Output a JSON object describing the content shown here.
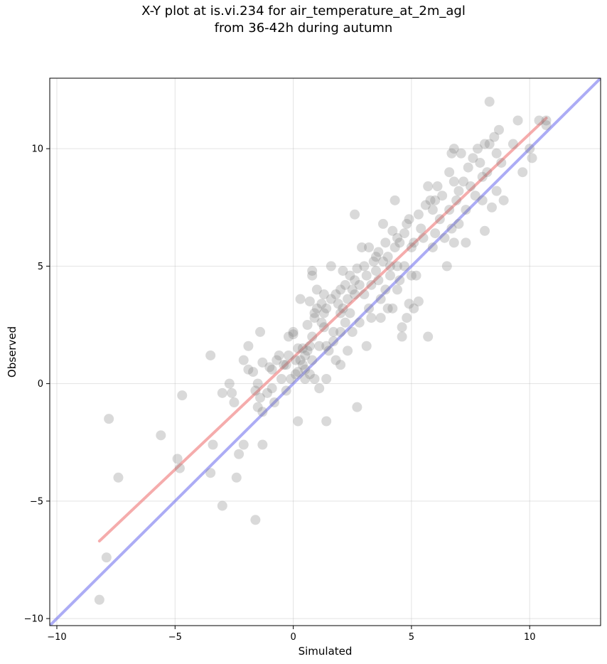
{
  "chart_data": {
    "type": "scatter",
    "title_line1": "X-Y plot at is.vi.234 for air_temperature_at_2m_agl",
    "title_line2": "from 36-42h during autumn",
    "xlabel": "Simulated",
    "ylabel": "Observed",
    "xlim": [
      -10.3,
      13.0
    ],
    "ylim": [
      -10.3,
      13.0
    ],
    "x_ticks": [
      -10,
      -5,
      0,
      5,
      10
    ],
    "y_ticks": [
      -10,
      -5,
      0,
      5,
      10
    ],
    "x_tick_labels": [
      "−10",
      "−5",
      "0",
      "5",
      "10"
    ],
    "y_tick_labels": [
      "−10",
      "−5",
      "0",
      "5",
      "10"
    ],
    "grid": true,
    "point_color": "#808080",
    "fit_line": {
      "color": "#f08080",
      "x": [
        -8.2,
        10.7
      ],
      "y": [
        -6.7,
        11.3
      ]
    },
    "identity_line": {
      "color": "#8080f0",
      "x": [
        -10.3,
        13.0
      ],
      "y": [
        -10.3,
        13.0
      ]
    },
    "points": [
      [
        -8.2,
        -9.2
      ],
      [
        -7.9,
        -7.4
      ],
      [
        -7.8,
        -1.5
      ],
      [
        -7.4,
        -4.0
      ],
      [
        -5.6,
        -2.2
      ],
      [
        -4.9,
        -3.2
      ],
      [
        -4.8,
        -3.6
      ],
      [
        -4.7,
        -0.5
      ],
      [
        -3.5,
        1.2
      ],
      [
        -3.5,
        -3.8
      ],
      [
        -3.4,
        -2.6
      ],
      [
        -3.0,
        -5.2
      ],
      [
        -3.0,
        -0.4
      ],
      [
        -2.7,
        0.0
      ],
      [
        -2.6,
        -0.4
      ],
      [
        -2.5,
        -0.8
      ],
      [
        -2.4,
        -4.0
      ],
      [
        -2.3,
        -3.0
      ],
      [
        -2.1,
        -2.6
      ],
      [
        -2.1,
        1.0
      ],
      [
        -1.9,
        1.6
      ],
      [
        -1.9,
        0.6
      ],
      [
        -1.7,
        0.5
      ],
      [
        -1.6,
        -5.8
      ],
      [
        -1.6,
        -0.3
      ],
      [
        -1.5,
        -1.0
      ],
      [
        -1.5,
        0.0
      ],
      [
        -1.4,
        2.2
      ],
      [
        -1.4,
        -0.6
      ],
      [
        -1.3,
        -1.2
      ],
      [
        -1.3,
        -2.6
      ],
      [
        -1.3,
        0.9
      ],
      [
        -1.1,
        -0.4
      ],
      [
        -1.0,
        0.7
      ],
      [
        -0.9,
        0.6
      ],
      [
        -0.9,
        -0.2
      ],
      [
        -0.8,
        -0.8
      ],
      [
        -0.7,
        1.0
      ],
      [
        -0.6,
        1.2
      ],
      [
        -0.5,
        0.2
      ],
      [
        -0.4,
        0.8
      ],
      [
        -0.3,
        -0.3
      ],
      [
        -0.3,
        0.8
      ],
      [
        -0.2,
        2.0
      ],
      [
        -0.2,
        1.2
      ],
      [
        -0.1,
        0.2
      ],
      [
        0.0,
        2.1
      ],
      [
        0.0,
        2.2
      ],
      [
        0.1,
        0.4
      ],
      [
        0.1,
        1.0
      ],
      [
        0.2,
        1.5
      ],
      [
        0.2,
        0.5
      ],
      [
        0.2,
        -1.6
      ],
      [
        0.3,
        3.6
      ],
      [
        0.3,
        1.0
      ],
      [
        0.4,
        1.5
      ],
      [
        0.4,
        0.8
      ],
      [
        0.5,
        0.6
      ],
      [
        0.5,
        1.2
      ],
      [
        0.5,
        0.2
      ],
      [
        0.6,
        1.4
      ],
      [
        0.6,
        2.5
      ],
      [
        0.7,
        1.6
      ],
      [
        0.7,
        0.4
      ],
      [
        0.7,
        3.5
      ],
      [
        0.8,
        4.6
      ],
      [
        0.8,
        4.8
      ],
      [
        0.8,
        2.0
      ],
      [
        0.8,
        1.0
      ],
      [
        0.9,
        3.0
      ],
      [
        0.9,
        2.8
      ],
      [
        0.9,
        0.2
      ],
      [
        1.0,
        4.0
      ],
      [
        1.0,
        3.2
      ],
      [
        1.1,
        1.6
      ],
      [
        1.1,
        -0.2
      ],
      [
        1.2,
        3.4
      ],
      [
        1.2,
        2.6
      ],
      [
        1.3,
        3.8
      ],
      [
        1.3,
        3.0
      ],
      [
        1.3,
        2.4
      ],
      [
        1.4,
        3.2
      ],
      [
        1.4,
        1.6
      ],
      [
        1.4,
        0.2
      ],
      [
        1.4,
        -1.6
      ],
      [
        1.5,
        1.4
      ],
      [
        1.6,
        5.0
      ],
      [
        1.6,
        3.6
      ],
      [
        1.7,
        2.2
      ],
      [
        1.7,
        1.8
      ],
      [
        1.8,
        1.0
      ],
      [
        1.8,
        3.8
      ],
      [
        1.9,
        3.4
      ],
      [
        2.0,
        4.0
      ],
      [
        2.0,
        3.0
      ],
      [
        2.0,
        2.2
      ],
      [
        2.0,
        0.8
      ],
      [
        2.1,
        4.8
      ],
      [
        2.1,
        3.2
      ],
      [
        2.2,
        4.2
      ],
      [
        2.2,
        2.6
      ],
      [
        2.3,
        3.6
      ],
      [
        2.3,
        1.4
      ],
      [
        2.4,
        4.6
      ],
      [
        2.4,
        3.0
      ],
      [
        2.5,
        4.0
      ],
      [
        2.5,
        2.2
      ],
      [
        2.6,
        7.2
      ],
      [
        2.6,
        4.4
      ],
      [
        2.6,
        3.8
      ],
      [
        2.7,
        -1.0
      ],
      [
        2.7,
        4.9
      ],
      [
        2.8,
        4.2
      ],
      [
        2.8,
        2.6
      ],
      [
        2.9,
        5.8
      ],
      [
        3.0,
        5.0
      ],
      [
        3.0,
        3.8
      ],
      [
        3.1,
        4.6
      ],
      [
        3.1,
        1.6
      ],
      [
        3.2,
        5.8
      ],
      [
        3.2,
        3.2
      ],
      [
        3.3,
        4.2
      ],
      [
        3.3,
        2.8
      ],
      [
        3.4,
        5.2
      ],
      [
        3.5,
        5.4
      ],
      [
        3.5,
        4.8
      ],
      [
        3.6,
        5.6
      ],
      [
        3.6,
        4.4
      ],
      [
        3.7,
        3.6
      ],
      [
        3.7,
        2.8
      ],
      [
        3.8,
        6.8
      ],
      [
        3.8,
        5.2
      ],
      [
        3.9,
        6.0
      ],
      [
        3.9,
        4.0
      ],
      [
        4.0,
        5.4
      ],
      [
        4.0,
        3.2
      ],
      [
        4.1,
        5.0
      ],
      [
        4.1,
        4.6
      ],
      [
        4.2,
        6.5
      ],
      [
        4.2,
        3.2
      ],
      [
        4.3,
        7.8
      ],
      [
        4.3,
        5.8
      ],
      [
        4.4,
        6.2
      ],
      [
        4.4,
        5.0
      ],
      [
        4.4,
        4.0
      ],
      [
        4.5,
        6.0
      ],
      [
        4.5,
        4.4
      ],
      [
        4.6,
        2.4
      ],
      [
        4.6,
        2.0
      ],
      [
        4.7,
        6.4
      ],
      [
        4.7,
        5.0
      ],
      [
        4.8,
        6.8
      ],
      [
        4.8,
        2.8
      ],
      [
        4.9,
        7.0
      ],
      [
        4.9,
        3.4
      ],
      [
        5.0,
        5.8
      ],
      [
        5.0,
        4.6
      ],
      [
        5.1,
        6.0
      ],
      [
        5.1,
        3.2
      ],
      [
        5.2,
        4.6
      ],
      [
        5.3,
        7.2
      ],
      [
        5.3,
        3.5
      ],
      [
        5.4,
        6.6
      ],
      [
        5.5,
        6.2
      ],
      [
        5.6,
        7.6
      ],
      [
        5.7,
        2.0
      ],
      [
        5.7,
        8.4
      ],
      [
        5.8,
        7.8
      ],
      [
        5.9,
        7.4
      ],
      [
        5.9,
        5.8
      ],
      [
        6.0,
        7.8
      ],
      [
        6.0,
        6.4
      ],
      [
        6.1,
        8.4
      ],
      [
        6.2,
        7.0
      ],
      [
        6.3,
        8.0
      ],
      [
        6.4,
        6.2
      ],
      [
        6.5,
        5.0
      ],
      [
        6.6,
        9.0
      ],
      [
        6.6,
        7.4
      ],
      [
        6.7,
        9.8
      ],
      [
        6.7,
        6.6
      ],
      [
        6.8,
        10.0
      ],
      [
        6.8,
        8.6
      ],
      [
        6.8,
        6.0
      ],
      [
        6.9,
        7.8
      ],
      [
        7.0,
        8.2
      ],
      [
        7.0,
        6.8
      ],
      [
        7.1,
        9.8
      ],
      [
        7.2,
        8.6
      ],
      [
        7.3,
        7.4
      ],
      [
        7.3,
        6.0
      ],
      [
        7.4,
        9.2
      ],
      [
        7.5,
        8.4
      ],
      [
        7.6,
        9.6
      ],
      [
        7.7,
        8.0
      ],
      [
        7.8,
        10.0
      ],
      [
        7.9,
        9.4
      ],
      [
        8.0,
        8.8
      ],
      [
        8.0,
        7.8
      ],
      [
        8.1,
        10.2
      ],
      [
        8.1,
        6.5
      ],
      [
        8.2,
        9.0
      ],
      [
        8.3,
        12.0
      ],
      [
        8.3,
        10.2
      ],
      [
        8.4,
        7.5
      ],
      [
        8.5,
        10.5
      ],
      [
        8.6,
        9.8
      ],
      [
        8.6,
        8.2
      ],
      [
        8.7,
        10.8
      ],
      [
        8.8,
        9.4
      ],
      [
        8.9,
        7.8
      ],
      [
        9.3,
        10.2
      ],
      [
        9.5,
        11.2
      ],
      [
        9.7,
        9.0
      ],
      [
        10.0,
        10.0
      ],
      [
        10.1,
        9.6
      ],
      [
        10.4,
        11.2
      ],
      [
        10.7,
        11.2
      ],
      [
        10.7,
        11.0
      ]
    ]
  }
}
